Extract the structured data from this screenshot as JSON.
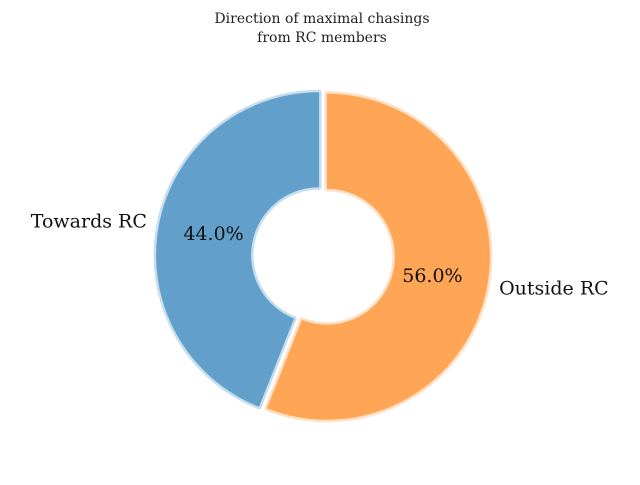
{
  "chart_data": {
    "type": "pie",
    "style": "donut",
    "title": [
      "Direction of maximal chasings",
      "from RC members"
    ],
    "slices": [
      {
        "label": "Towards RC",
        "value": 44.0,
        "percent_label": "44.0%",
        "color": "#62a0cb"
      },
      {
        "label": "Outside RC",
        "value": 56.0,
        "percent_label": "56.0%",
        "color": "#ffa556"
      }
    ],
    "start_angle_deg": 90,
    "direction": "counterclockwise"
  }
}
